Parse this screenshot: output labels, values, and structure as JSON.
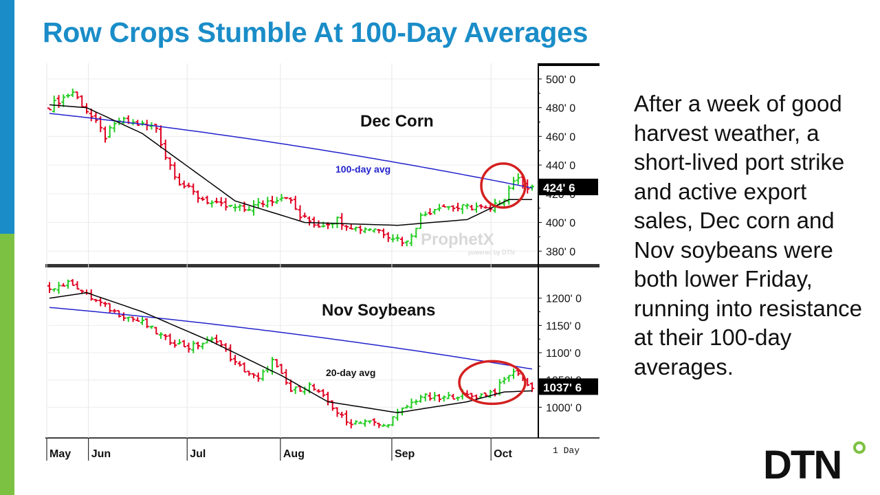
{
  "slide": {
    "title": "Row Crops Stumble At 100-Day Averages",
    "caption": "After a week of good harvest weather, a short-lived port strike and active export sales, Dec corn and Nov soybeans were both lower Friday, running into resistance at their 100-day averages."
  },
  "logo": {
    "text": "DTN",
    "mark_color": "#7dc142"
  },
  "watermark": {
    "text": "ProphetX",
    "subtext": "powered by DTN"
  },
  "colors": {
    "title": "#1a8dc8",
    "accent_top": "#1a8dc8",
    "accent_bottom": "#7dc142",
    "up_bar": "#22cc22",
    "down_bar": "#e00020",
    "ma100": "#2222cc",
    "ma20": "#000000",
    "highlight": "#d42020"
  },
  "chart_data": {
    "type": "ohlc",
    "x_axis": {
      "labels": [
        "May",
        "Jun",
        "Jul",
        "Aug",
        "Sep",
        "Oct"
      ],
      "timeframe_label": "1 Day"
    },
    "panels": [
      {
        "name": "Dec Corn",
        "y_ticks": [
          "500' 0",
          "480' 0",
          "460' 0",
          "440' 0",
          "420' 0",
          "400' 0",
          "380' 0"
        ],
        "y_tick_values": [
          500,
          480,
          460,
          440,
          420,
          400,
          380
        ],
        "ylim": [
          372,
          510
        ],
        "last_price_label": "424' 6",
        "last_price": 424.75,
        "series": [
          {
            "label": "100-day avg",
            "start": 476,
            "end": 424
          },
          {
            "label": "",
            "description": "20-day moving average",
            "anchors": [
              [
                0,
                482
              ],
              [
                8,
                480
              ],
              [
                20,
                462
              ],
              [
                40,
                415
              ],
              [
                55,
                400
              ],
              [
                75,
                398
              ],
              [
                90,
                402
              ],
              [
                99,
                416
              ],
              [
                104,
                416
              ]
            ]
          }
        ],
        "close_path": [
          [
            0,
            481
          ],
          [
            5,
            491
          ],
          [
            8,
            478
          ],
          [
            12,
            460
          ],
          [
            15,
            471
          ],
          [
            20,
            468
          ],
          [
            23,
            466
          ],
          [
            25,
            446
          ],
          [
            28,
            428
          ],
          [
            32,
            418
          ],
          [
            36,
            412
          ],
          [
            42,
            409
          ],
          [
            48,
            416
          ],
          [
            51,
            419
          ],
          [
            54,
            404
          ],
          [
            58,
            398
          ],
          [
            62,
            402
          ],
          [
            66,
            396
          ],
          [
            70,
            396
          ],
          [
            74,
            390
          ],
          [
            77,
            386
          ],
          [
            80,
            404
          ],
          [
            84,
            412
          ],
          [
            88,
            410
          ],
          [
            92,
            411
          ],
          [
            95,
            408
          ],
          [
            98,
            418
          ],
          [
            100,
            430
          ],
          [
            102,
            428
          ],
          [
            103,
            425
          ]
        ]
      },
      {
        "name": "Nov Soybeans",
        "y_ticks": [
          "1200' 0",
          "1150' 0",
          "1100' 0",
          "1050' 0",
          "1000' 0"
        ],
        "y_tick_values": [
          1200,
          1150,
          1100,
          1050,
          1000
        ],
        "ylim": [
          950,
          1250
        ],
        "last_price_label": "1037' 6",
        "last_price": 1037.75,
        "series": [
          {
            "label": "100-day avg",
            "start": 1183,
            "end": 1070
          },
          {
            "label": "20-day avg",
            "anchors": [
              [
                0,
                1200
              ],
              [
                8,
                1210
              ],
              [
                20,
                1175
              ],
              [
                35,
                1120
              ],
              [
                50,
                1058
              ],
              [
                60,
                1010
              ],
              [
                75,
                990
              ],
              [
                90,
                1010
              ],
              [
                98,
                1028
              ],
              [
                104,
                1030
              ]
            ]
          }
        ],
        "close_path": [
          [
            0,
            1220
          ],
          [
            5,
            1228
          ],
          [
            8,
            1205
          ],
          [
            14,
            1175
          ],
          [
            20,
            1155
          ],
          [
            25,
            1125
          ],
          [
            30,
            1110
          ],
          [
            36,
            1125
          ],
          [
            40,
            1080
          ],
          [
            45,
            1050
          ],
          [
            48,
            1085
          ],
          [
            52,
            1030
          ],
          [
            56,
            1040
          ],
          [
            60,
            1010
          ],
          [
            64,
            972
          ],
          [
            68,
            975
          ],
          [
            72,
            965
          ],
          [
            76,
            995
          ],
          [
            80,
            1020
          ],
          [
            84,
            1015
          ],
          [
            88,
            1022
          ],
          [
            92,
            1020
          ],
          [
            96,
            1030
          ],
          [
            99,
            1060
          ],
          [
            101,
            1065
          ],
          [
            103,
            1040
          ],
          [
            104,
            1038
          ]
        ]
      }
    ]
  }
}
